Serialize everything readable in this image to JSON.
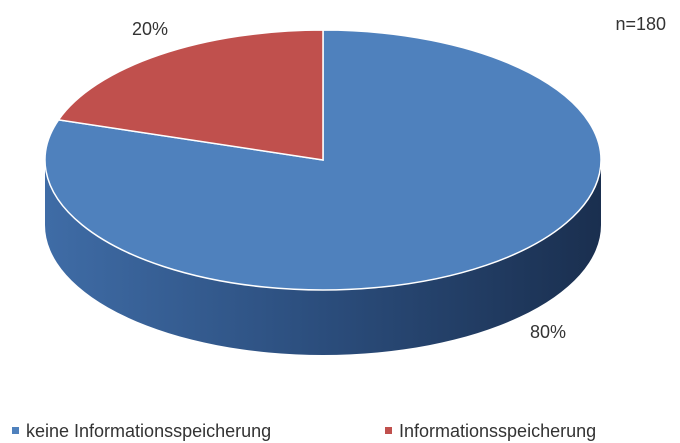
{
  "chart_data": {
    "type": "pie",
    "categories": [
      "keine Informationsspeicherung",
      "Informationsspeicherung"
    ],
    "values": [
      80,
      20
    ],
    "value_labels": [
      "80%",
      "20%"
    ],
    "colors": [
      "#4f81bd",
      "#c0504d"
    ],
    "annotation": "n=180",
    "legend": "bottom"
  }
}
